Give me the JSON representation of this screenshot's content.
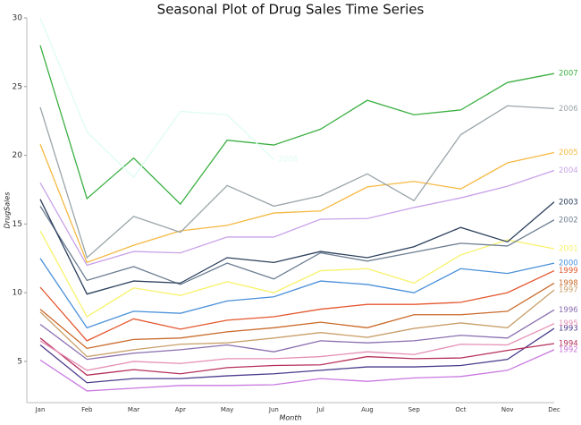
{
  "chart_data": {
    "type": "line",
    "title": "Seasonal Plot of Drug Sales Time Series",
    "x_label": "Month",
    "y_label": "DrugSales",
    "categories": [
      "Jan",
      "Feb",
      "Mar",
      "Apr",
      "May",
      "Jun",
      "Jul",
      "Aug",
      "Sep",
      "Oct",
      "Nov",
      "Dec"
    ],
    "ylim": [
      2,
      30
    ],
    "yticks": [
      5,
      10,
      15,
      20,
      25,
      30
    ],
    "series": [
      {
        "name": "1992",
        "color": "#c978e0",
        "values": [
          5.1,
          2.85,
          3.05,
          3.25,
          3.25,
          3.3,
          3.75,
          3.55,
          3.8,
          3.9,
          4.35,
          5.85
        ]
      },
      {
        "name": "1993",
        "color": "#4b3a8c",
        "values": [
          6.2,
          3.45,
          3.75,
          3.75,
          3.95,
          4.1,
          4.35,
          4.6,
          4.6,
          4.7,
          5.15,
          7.4
        ]
      },
      {
        "name": "1994",
        "color": "#b5305a",
        "values": [
          6.7,
          4.0,
          4.4,
          4.1,
          4.55,
          4.7,
          4.75,
          5.35,
          5.2,
          5.25,
          5.8,
          6.3
        ]
      },
      {
        "name": "1995",
        "color": "#e58fb5",
        "values": [
          6.5,
          4.35,
          5.0,
          4.85,
          5.2,
          5.2,
          5.35,
          5.7,
          5.5,
          6.25,
          6.2,
          7.75
        ]
      },
      {
        "name": "1996",
        "color": "#8a6fb0",
        "values": [
          7.7,
          5.15,
          5.6,
          5.85,
          6.2,
          5.7,
          6.5,
          6.35,
          6.5,
          6.9,
          6.7,
          8.75
        ]
      },
      {
        "name": "1997",
        "color": "#c8a06a",
        "values": [
          8.6,
          5.35,
          5.85,
          6.25,
          6.35,
          6.7,
          7.1,
          6.75,
          7.4,
          7.8,
          7.45,
          10.2
        ]
      },
      {
        "name": "1998",
        "color": "#c96a2a",
        "values": [
          8.8,
          5.95,
          6.6,
          6.7,
          7.15,
          7.45,
          7.85,
          7.45,
          8.4,
          8.4,
          8.65,
          10.7
        ]
      },
      {
        "name": "1999",
        "color": "#e4572e",
        "values": [
          10.4,
          6.5,
          8.1,
          7.35,
          8.0,
          8.25,
          8.8,
          9.15,
          9.15,
          9.3,
          10.0,
          11.6
        ]
      },
      {
        "name": "2000",
        "color": "#4a90d9",
        "values": [
          12.5,
          7.45,
          8.65,
          8.5,
          9.4,
          9.7,
          10.85,
          10.6,
          10.0,
          11.75,
          11.4,
          12.15
        ]
      },
      {
        "name": "2001",
        "color": "#f7f26a",
        "values": [
          14.5,
          8.25,
          10.35,
          9.8,
          10.8,
          10.0,
          11.6,
          11.75,
          10.7,
          12.75,
          13.85,
          13.2
        ]
      },
      {
        "name": "2002",
        "color": "#6e7f92",
        "values": [
          16.3,
          10.9,
          11.9,
          10.6,
          12.15,
          11.0,
          12.9,
          12.3,
          12.95,
          13.6,
          13.4,
          15.3
        ]
      },
      {
        "name": "2003",
        "color": "#2b3f5c",
        "values": [
          16.8,
          9.9,
          10.85,
          10.7,
          12.55,
          12.2,
          13.0,
          12.55,
          13.35,
          14.75,
          13.7,
          16.6
        ]
      },
      {
        "name": "2004",
        "color": "#c8a2e8",
        "values": [
          18.0,
          12.0,
          13.0,
          12.9,
          14.05,
          14.05,
          15.35,
          15.4,
          16.2,
          16.9,
          17.75,
          18.9
        ]
      },
      {
        "name": "2005",
        "color": "#f5b942",
        "values": [
          20.8,
          12.2,
          13.45,
          14.5,
          14.9,
          15.8,
          15.95,
          17.7,
          18.1,
          17.55,
          19.45,
          20.2
        ]
      },
      {
        "name": "2006",
        "color": "#9aa5a9",
        "values": [
          23.5,
          12.55,
          15.55,
          14.4,
          17.8,
          16.3,
          17.05,
          18.65,
          16.7,
          21.5,
          23.6,
          23.4
        ]
      },
      {
        "name": "2007",
        "color": "#3cb043",
        "values": [
          28.0,
          16.85,
          19.8,
          16.45,
          21.1,
          20.75,
          21.9,
          24.0,
          22.95,
          23.3,
          25.3,
          25.95
        ]
      },
      {
        "name": "2008",
        "color": "#dffcf4",
        "values": [
          30.0,
          21.7,
          18.4,
          23.2,
          22.95,
          19.7,
          null,
          null,
          null,
          null,
          null,
          null
        ]
      }
    ]
  }
}
